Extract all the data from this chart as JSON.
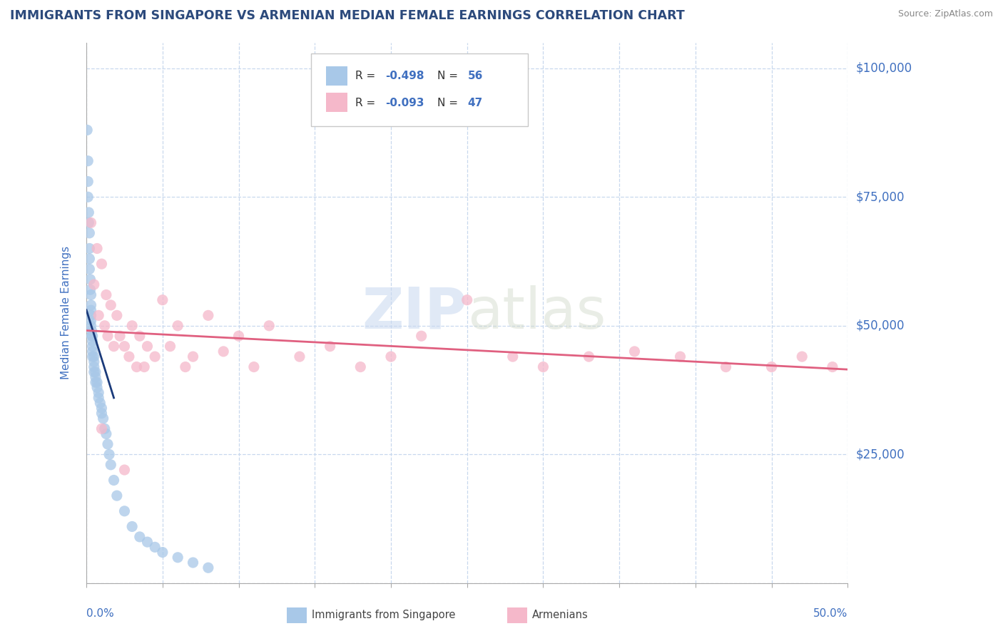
{
  "title": "IMMIGRANTS FROM SINGAPORE VS ARMENIAN MEDIAN FEMALE EARNINGS CORRELATION CHART",
  "source": "Source: ZipAtlas.com",
  "ylabel": "Median Female Earnings",
  "yticks": [
    0,
    25000,
    50000,
    75000,
    100000
  ],
  "ytick_labels_right": [
    "",
    "$25,000",
    "$50,000",
    "$75,000",
    "$100,000"
  ],
  "xlim": [
    0.0,
    0.5
  ],
  "ylim": [
    0,
    105000
  ],
  "legend_bottom_label1": "Immigrants from Singapore",
  "legend_bottom_label2": "Armenians",
  "singapore_color": "#a8c8e8",
  "armenian_color": "#f5b8ca",
  "singapore_line_color": "#1a3a7a",
  "armenian_line_color": "#e06080",
  "title_color": "#2c4a7c",
  "axis_label_color": "#4070c0",
  "tick_label_color": "#4070c0",
  "background_color": "#ffffff",
  "grid_color": "#c8d8ee",
  "watermark_zip": "ZIP",
  "watermark_atlas": "atlas",
  "singapore_x": [
    0.0005,
    0.001,
    0.001,
    0.001,
    0.0015,
    0.0015,
    0.002,
    0.002,
    0.002,
    0.002,
    0.0025,
    0.0025,
    0.003,
    0.003,
    0.003,
    0.003,
    0.003,
    0.003,
    0.0035,
    0.0035,
    0.004,
    0.004,
    0.004,
    0.004,
    0.004,
    0.005,
    0.005,
    0.005,
    0.005,
    0.006,
    0.006,
    0.006,
    0.007,
    0.007,
    0.008,
    0.008,
    0.009,
    0.01,
    0.01,
    0.011,
    0.012,
    0.013,
    0.014,
    0.015,
    0.016,
    0.018,
    0.02,
    0.025,
    0.03,
    0.035,
    0.04,
    0.045,
    0.05,
    0.06,
    0.07,
    0.08
  ],
  "singapore_y": [
    88000,
    82000,
    78000,
    75000,
    72000,
    70000,
    68000,
    65000,
    63000,
    61000,
    59000,
    57000,
    56000,
    54000,
    53000,
    52000,
    51000,
    50000,
    49000,
    48000,
    48000,
    47000,
    46000,
    45000,
    44000,
    44000,
    43000,
    42000,
    41000,
    41000,
    40000,
    39000,
    39000,
    38000,
    37000,
    36000,
    35000,
    34000,
    33000,
    32000,
    30000,
    29000,
    27000,
    25000,
    23000,
    20000,
    17000,
    14000,
    11000,
    9000,
    8000,
    7000,
    6000,
    5000,
    4000,
    3000
  ],
  "armenian_x": [
    0.003,
    0.005,
    0.007,
    0.008,
    0.01,
    0.012,
    0.013,
    0.014,
    0.016,
    0.018,
    0.02,
    0.022,
    0.025,
    0.028,
    0.03,
    0.033,
    0.035,
    0.038,
    0.04,
    0.045,
    0.05,
    0.055,
    0.06,
    0.065,
    0.07,
    0.08,
    0.09,
    0.1,
    0.11,
    0.12,
    0.14,
    0.16,
    0.18,
    0.2,
    0.22,
    0.25,
    0.28,
    0.3,
    0.33,
    0.36,
    0.39,
    0.42,
    0.45,
    0.47,
    0.49,
    0.01,
    0.025
  ],
  "armenian_y": [
    70000,
    58000,
    65000,
    52000,
    62000,
    50000,
    56000,
    48000,
    54000,
    46000,
    52000,
    48000,
    46000,
    44000,
    50000,
    42000,
    48000,
    42000,
    46000,
    44000,
    55000,
    46000,
    50000,
    42000,
    44000,
    52000,
    45000,
    48000,
    42000,
    50000,
    44000,
    46000,
    42000,
    44000,
    48000,
    55000,
    44000,
    42000,
    44000,
    45000,
    44000,
    42000,
    42000,
    44000,
    42000,
    30000,
    22000
  ]
}
